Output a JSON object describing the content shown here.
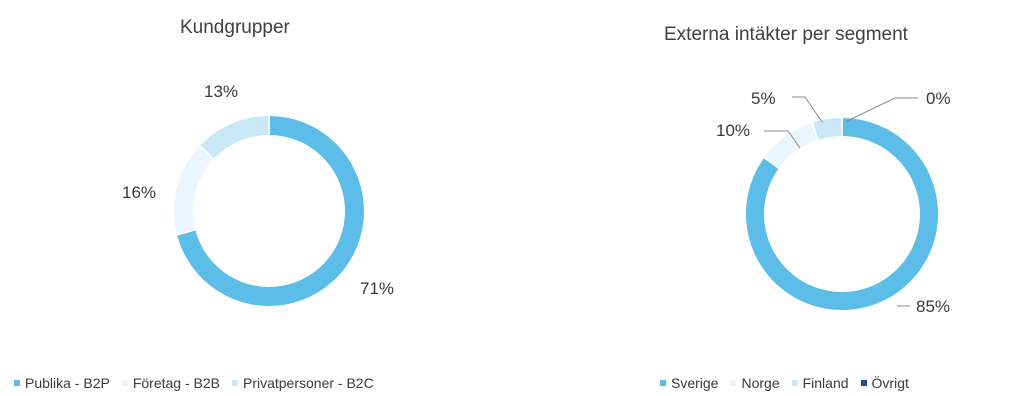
{
  "chart_data": [
    {
      "type": "pie",
      "title": "Kundgrupper",
      "categories": [
        "Publika - B2P",
        "Företag - B2B",
        "Privatpersoner - B2C"
      ],
      "values": [
        71,
        16,
        13
      ],
      "value_labels": [
        "71%",
        "16%",
        "13%"
      ],
      "colors": [
        "#5bbde8",
        "#e9f6fc",
        "#c8e8f7"
      ],
      "donut": true,
      "legend_position": "bottom-left"
    },
    {
      "type": "pie",
      "title": "Externa intäkter per segment",
      "categories": [
        "Sverige",
        "Norge",
        "Finland",
        "Övrigt"
      ],
      "values": [
        85,
        10,
        5,
        0
      ],
      "value_labels": [
        "85%",
        "10%",
        "5%",
        "0%"
      ],
      "colors": [
        "#5bbde8",
        "#e9f6fc",
        "#c8e8f7",
        "#1e4f8c"
      ],
      "donut": true,
      "legend_position": "bottom-right"
    }
  ]
}
